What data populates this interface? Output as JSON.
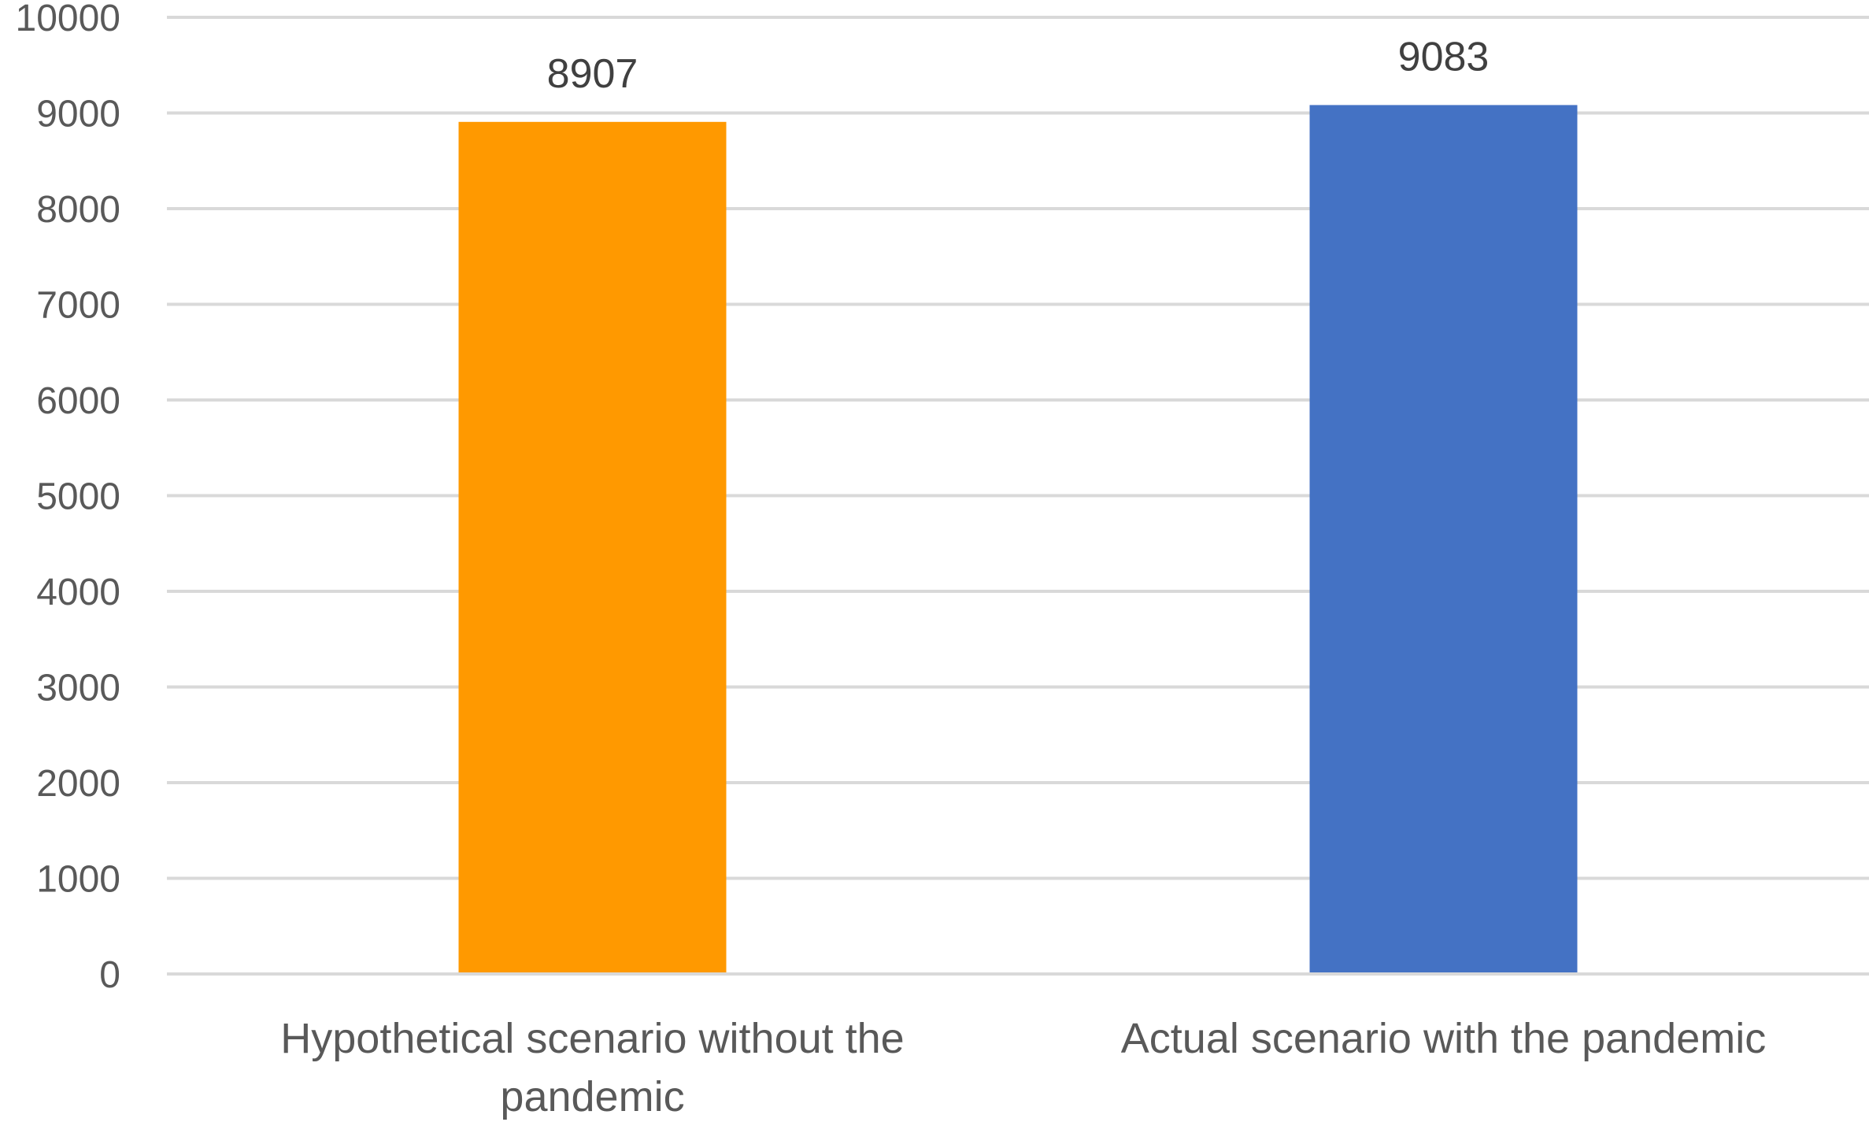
{
  "chart_data": {
    "type": "bar",
    "title": "",
    "xlabel": "",
    "ylabel": "",
    "ylim": [
      0,
      10000
    ],
    "yticks": [
      0,
      1000,
      2000,
      3000,
      4000,
      5000,
      6000,
      7000,
      8000,
      9000,
      10000
    ],
    "grid": true,
    "legend": "none",
    "categories": [
      [
        "Hypothetical scenario without the",
        "pandemic"
      ],
      [
        "Actual scenario with the pandemic"
      ]
    ],
    "series": [
      {
        "values": [
          8907,
          9083
        ],
        "colors": [
          "#FF9900",
          "#4472C4"
        ]
      }
    ],
    "data_labels": [
      "8907",
      "9083"
    ]
  }
}
